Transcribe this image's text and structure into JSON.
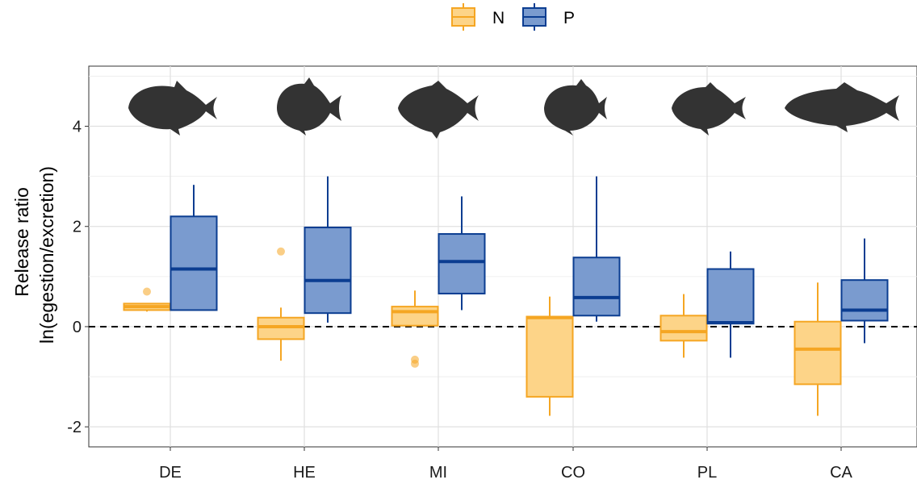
{
  "chart_data": {
    "type": "box",
    "ylabel_line1": "Release ratio",
    "ylabel_line2": "ln(egestion/excretion)",
    "xlabel": "",
    "ylim": [
      -2.4,
      5.2
    ],
    "yticks": [
      -2,
      0,
      2,
      4
    ],
    "ytick_labels": [
      "-2",
      "0",
      "2",
      "4"
    ],
    "grid": true,
    "reference_line": {
      "y": 0,
      "style": "dashed"
    },
    "legend": {
      "position": "top",
      "entries": [
        "N",
        "P"
      ]
    },
    "categories": [
      "DE",
      "HE",
      "MI",
      "CO",
      "PL",
      "CA"
    ],
    "series": [
      {
        "name": "N",
        "color": "#F5A623",
        "fill": "#FDD488",
        "boxes": [
          {
            "category": "DE",
            "whisker_low": 0.3,
            "q1": 0.33,
            "median": 0.4,
            "q3": 0.46,
            "whisker_high": 0.47,
            "outliers": [
              0.7
            ]
          },
          {
            "category": "HE",
            "whisker_low": -0.68,
            "q1": -0.25,
            "median": 0.0,
            "q3": 0.18,
            "whisker_high": 0.38,
            "outliers": [
              1.5
            ]
          },
          {
            "category": "MI",
            "whisker_low": 0.02,
            "q1": 0.02,
            "median": 0.3,
            "q3": 0.4,
            "whisker_high": 0.72,
            "outliers": [
              -0.66,
              -0.74
            ]
          },
          {
            "category": "CO",
            "whisker_low": -1.78,
            "q1": -1.4,
            "median": 0.18,
            "q3": 0.2,
            "whisker_high": 0.6,
            "outliers": []
          },
          {
            "category": "PL",
            "whisker_low": -0.62,
            "q1": -0.28,
            "median": -0.1,
            "q3": 0.22,
            "whisker_high": 0.65,
            "outliers": []
          },
          {
            "category": "CA",
            "whisker_low": -1.78,
            "q1": -1.15,
            "median": -0.45,
            "q3": 0.1,
            "whisker_high": 0.88,
            "outliers": []
          }
        ]
      },
      {
        "name": "P",
        "color": "#0B3D91",
        "fill": "#7A9BCF",
        "boxes": [
          {
            "category": "DE",
            "whisker_low": 0.33,
            "q1": 0.33,
            "median": 1.15,
            "q3": 2.2,
            "whisker_high": 2.83,
            "outliers": []
          },
          {
            "category": "HE",
            "whisker_low": 0.08,
            "q1": 0.27,
            "median": 0.92,
            "q3": 1.98,
            "whisker_high": 3.0,
            "outliers": []
          },
          {
            "category": "MI",
            "whisker_low": 0.33,
            "q1": 0.66,
            "median": 1.3,
            "q3": 1.85,
            "whisker_high": 2.6,
            "outliers": []
          },
          {
            "category": "CO",
            "whisker_low": 0.1,
            "q1": 0.22,
            "median": 0.58,
            "q3": 1.38,
            "whisker_high": 3.0,
            "outliers": []
          },
          {
            "category": "PL",
            "whisker_low": -0.62,
            "q1": 0.06,
            "median": 0.08,
            "q3": 1.15,
            "whisker_high": 1.5,
            "outliers": []
          },
          {
            "category": "CA",
            "whisker_low": -0.33,
            "q1": 0.12,
            "median": 0.33,
            "q3": 0.93,
            "whisker_high": 1.76,
            "outliers": []
          }
        ]
      }
    ],
    "silhouettes": [
      "fish-silhouette",
      "fish-silhouette",
      "fish-silhouette",
      "fish-silhouette",
      "fish-silhouette",
      "fish-silhouette"
    ]
  }
}
